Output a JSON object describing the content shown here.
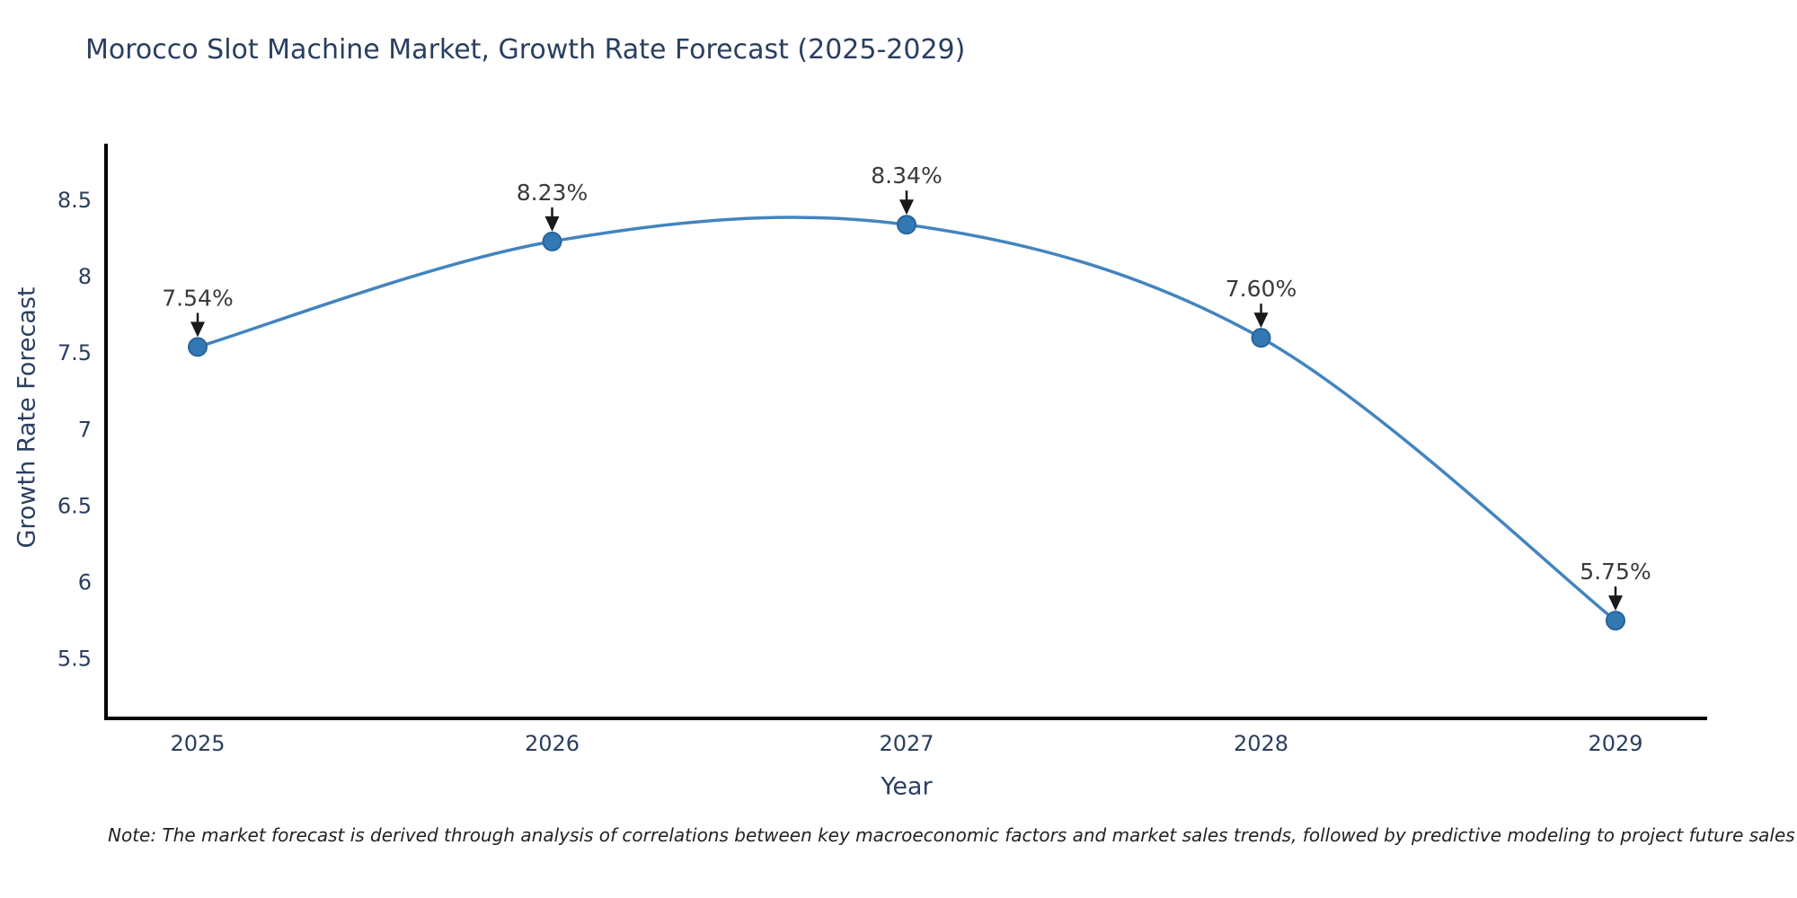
{
  "title": "Morocco Slot Machine Market, Growth Rate Forecast (2025-2029)",
  "note": "Note: The market forecast is derived through analysis of correlations between key macroeconomic factors and market sales trends, followed by predictive modeling to project future sales",
  "colors": {
    "line": "#4384bf",
    "marker_fill": "#3178b4",
    "marker_edge": "#2a6499",
    "title_text": "#2a3f5f",
    "axis_text": "#2a3f5f",
    "annotation_text": "#3a3a3a",
    "arrow": "#1a1a1a",
    "spine": "#000000",
    "background": "#ffffff"
  },
  "chart_data": {
    "type": "line",
    "title": "Morocco Slot Machine Market, Growth Rate Forecast (2025-2029)",
    "categories": [
      "2025",
      "2026",
      "2027",
      "2028",
      "2029"
    ],
    "values": [
      7.54,
      8.23,
      8.34,
      7.6,
      5.75
    ],
    "point_labels": [
      "7.54%",
      "8.23%",
      "8.34%",
      "7.60%",
      "5.75%"
    ],
    "xlabel": "Year",
    "ylabel": "Growth Rate Forecast",
    "yticks": [
      5.5,
      6,
      6.5,
      7,
      7.5,
      8,
      8.5
    ],
    "ylim": [
      5.11,
      8.87
    ],
    "grid": false,
    "legend": false,
    "line_shape": "spline",
    "annotation_arrows": true
  }
}
